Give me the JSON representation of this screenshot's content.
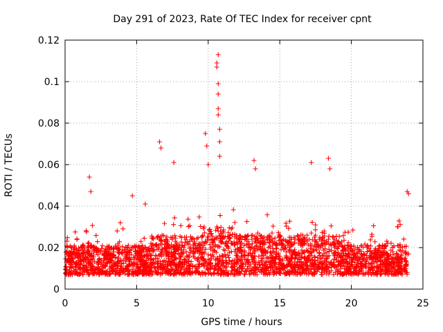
{
  "chart_data": {
    "type": "scatter",
    "title": "Day 291 of 2023, Rate Of TEC Index for receiver cpnt",
    "xlabel": "GPS time / hours",
    "ylabel": "ROTI / TECUs",
    "xlim": [
      0,
      25
    ],
    "ylim": [
      0,
      0.12
    ],
    "xticks": [
      "0",
      "5",
      "10",
      "15",
      "20",
      "25"
    ],
    "yticks": [
      "0",
      "0.02",
      "0.04",
      "0.06",
      "0.08",
      "0.1",
      "0.12"
    ],
    "grid": true,
    "marker": "+",
    "color": "#ff0000",
    "series": [
      {
        "name": "ROTI",
        "x": [
          0.2,
          0.5,
          0.8,
          1.0,
          1.3,
          1.6,
          1.8,
          2.0,
          2.3,
          2.6,
          2.9,
          3.1,
          3.4,
          3.7,
          4.0,
          4.3,
          4.6,
          4.9,
          5.2,
          5.5,
          5.8,
          6.0,
          6.3,
          6.6,
          6.8,
          7.1,
          7.4,
          7.7,
          8.0,
          8.3,
          8.6,
          8.9,
          9.2,
          9.5,
          9.8,
          10.0,
          10.2,
          10.4,
          10.6,
          10.7,
          10.8,
          11.0,
          11.3,
          11.6,
          11.9,
          12.2,
          12.5,
          12.8,
          13.1,
          13.3,
          13.6,
          13.9,
          14.2,
          14.5,
          14.8,
          15.1,
          15.4,
          15.7,
          16.0,
          16.3,
          16.6,
          16.9,
          17.2,
          17.5,
          17.8,
          18.1,
          18.4,
          18.7,
          19.0,
          19.3,
          19.6,
          19.9,
          20.2,
          20.5,
          20.8,
          21.1,
          21.4,
          21.7,
          22.0,
          22.3,
          22.6,
          22.9,
          23.2,
          23.5,
          23.8,
          24.0,
          0.1,
          0.4,
          0.7,
          1.1,
          1.4,
          1.7,
          1.9,
          2.2,
          2.5,
          2.8,
          3.0,
          3.3,
          3.6,
          3.9,
          4.2,
          4.5,
          4.8,
          5.1,
          5.4,
          5.7,
          5.9,
          6.2,
          6.5,
          6.7,
          7.0,
          7.3,
          7.6,
          7.9,
          8.2,
          8.5,
          8.8,
          9.1,
          9.4,
          9.7,
          9.9,
          10.1,
          10.3,
          10.5,
          10.65,
          10.75,
          10.9,
          11.1,
          11.4,
          11.7,
          12.0,
          12.3,
          12.6,
          12.9,
          13.2,
          13.5,
          13.8,
          14.1,
          14.4,
          14.7,
          15.0,
          15.3,
          15.6,
          15.9,
          16.2,
          16.5,
          16.8,
          17.1,
          17.4,
          17.7,
          18.0,
          18.3,
          18.6,
          18.9,
          19.2,
          19.5,
          19.8,
          20.1,
          20.4,
          20.7,
          21.0,
          21.3,
          21.6,
          21.9,
          22.2,
          22.5,
          22.8,
          23.1,
          23.4,
          23.7,
          23.9,
          1.7,
          1.8,
          6.6,
          6.7,
          7.6,
          9.8,
          9.9,
          10.0,
          10.6,
          10.6,
          10.7,
          10.7,
          10.7,
          10.7,
          10.8,
          10.8,
          10.8,
          10.7,
          13.2,
          13.3,
          17.2,
          18.4,
          18.5,
          24.0,
          23.9,
          5.6,
          4.7
        ],
        "y": [
          0.018,
          0.015,
          0.019,
          0.017,
          0.021,
          0.022,
          0.016,
          0.02,
          0.018,
          0.017,
          0.019,
          0.016,
          0.018,
          0.02,
          0.017,
          0.015,
          0.019,
          0.018,
          0.017,
          0.019,
          0.016,
          0.022,
          0.021,
          0.024,
          0.019,
          0.022,
          0.02,
          0.023,
          0.021,
          0.02,
          0.022,
          0.024,
          0.019,
          0.021,
          0.023,
          0.025,
          0.02,
          0.024,
          0.03,
          0.028,
          0.026,
          0.024,
          0.021,
          0.022,
          0.019,
          0.02,
          0.021,
          0.023,
          0.026,
          0.024,
          0.022,
          0.019,
          0.02,
          0.018,
          0.021,
          0.022,
          0.02,
          0.023,
          0.025,
          0.022,
          0.026,
          0.024,
          0.027,
          0.023,
          0.025,
          0.028,
          0.024,
          0.022,
          0.02,
          0.021,
          0.019,
          0.018,
          0.017,
          0.019,
          0.016,
          0.018,
          0.017,
          0.015,
          0.018,
          0.017,
          0.016,
          0.018,
          0.017,
          0.016,
          0.018,
          0.017,
          0.013,
          0.012,
          0.011,
          0.01,
          0.014,
          0.012,
          0.011,
          0.01,
          0.012,
          0.011,
          0.013,
          0.01,
          0.012,
          0.011,
          0.01,
          0.012,
          0.011,
          0.01,
          0.012,
          0.011,
          0.012,
          0.013,
          0.012,
          0.011,
          0.012,
          0.013,
          0.012,
          0.011,
          0.012,
          0.013,
          0.012,
          0.011,
          0.012,
          0.011,
          0.01,
          0.012,
          0.011,
          0.01,
          0.012,
          0.011,
          0.012,
          0.011,
          0.012,
          0.011,
          0.012,
          0.011,
          0.012,
          0.011,
          0.012,
          0.013,
          0.012,
          0.011,
          0.012,
          0.011,
          0.012,
          0.011,
          0.012,
          0.011,
          0.012,
          0.011,
          0.012,
          0.011,
          0.012,
          0.011,
          0.012,
          0.011,
          0.012,
          0.011,
          0.012,
          0.011,
          0.01,
          0.011,
          0.012,
          0.01,
          0.011,
          0.01,
          0.011,
          0.01,
          0.009,
          0.01,
          0.011,
          0.009,
          0.01,
          0.009,
          0.008,
          0.054,
          0.047,
          0.071,
          0.068,
          0.061,
          0.075,
          0.069,
          0.06,
          0.107,
          0.109,
          0.113,
          0.099,
          0.094,
          0.087,
          0.077,
          0.071,
          0.064,
          0.084,
          0.062,
          0.058,
          0.061,
          0.063,
          0.058,
          0.046,
          0.047,
          0.041,
          0.045
        ]
      }
    ]
  }
}
